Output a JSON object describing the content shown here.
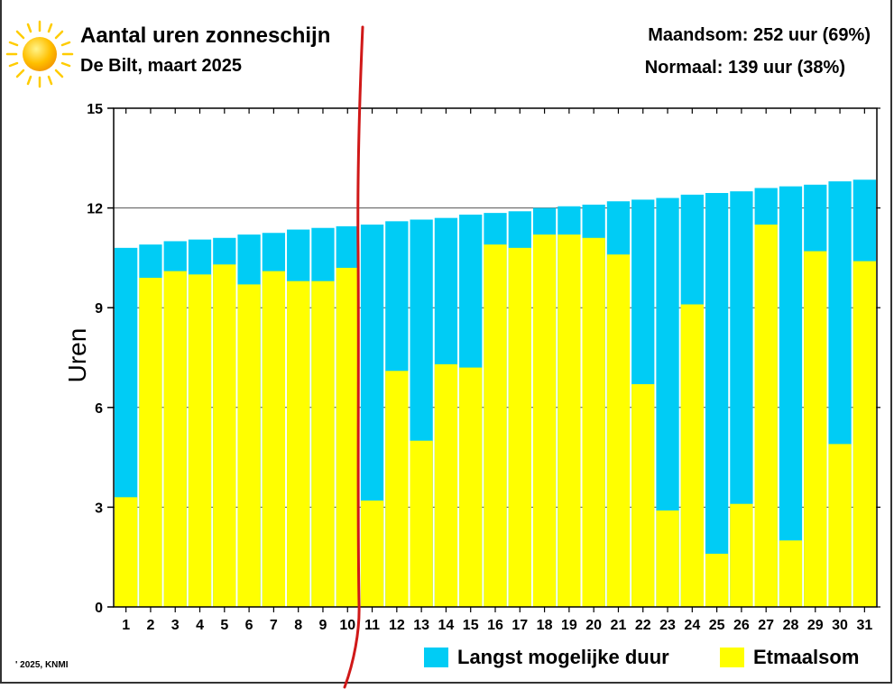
{
  "header": {
    "title": "Aantal uren zonneschijn",
    "subtitle": "De Bilt, maart 2025",
    "stat_month": "Maandsom: 252 uur (69%)",
    "stat_normal": "Normaal: 139 uur (38%)"
  },
  "footer": {
    "credit": "' 2025, KNMI"
  },
  "colors": {
    "max": "#00ccf5",
    "actual": "#ffff00",
    "sun": "#ffcc00",
    "annotation": "#d01818"
  },
  "icons": {
    "sun": "sun-icon"
  },
  "chart_data": {
    "type": "bar",
    "title": "Aantal uren zonneschijn",
    "xlabel": "",
    "ylabel": "Uren",
    "ylim": [
      0,
      15
    ],
    "yticks": [
      0,
      3,
      6,
      9,
      12,
      15
    ],
    "grid": true,
    "legend": "bottom-right",
    "categories": [
      "1",
      "2",
      "3",
      "4",
      "5",
      "6",
      "7",
      "8",
      "9",
      "10",
      "11",
      "12",
      "13",
      "14",
      "15",
      "16",
      "17",
      "18",
      "19",
      "20",
      "21",
      "22",
      "23",
      "24",
      "25",
      "26",
      "27",
      "28",
      "29",
      "30",
      "31"
    ],
    "series": [
      {
        "name": "Langst mogelijke duur",
        "values": [
          10.8,
          10.9,
          11.0,
          11.05,
          11.1,
          11.2,
          11.25,
          11.35,
          11.4,
          11.45,
          11.5,
          11.6,
          11.65,
          11.7,
          11.8,
          11.85,
          11.9,
          12.0,
          12.05,
          12.1,
          12.2,
          12.25,
          12.3,
          12.4,
          12.45,
          12.5,
          12.6,
          12.65,
          12.7,
          12.8,
          12.85
        ]
      },
      {
        "name": "Etmaalsom",
        "values": [
          3.3,
          9.9,
          10.1,
          10.0,
          10.3,
          9.7,
          10.1,
          9.8,
          9.8,
          10.2,
          3.2,
          7.1,
          5.0,
          7.3,
          7.2,
          10.9,
          10.8,
          11.2,
          11.2,
          11.1,
          10.6,
          6.7,
          2.9,
          9.1,
          1.6,
          3.1,
          11.5,
          2.0,
          10.7,
          4.9,
          10.4
        ]
      }
    ]
  }
}
